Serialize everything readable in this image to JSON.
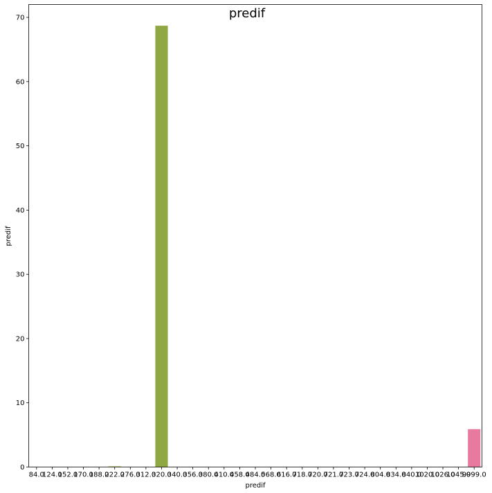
{
  "chart_data": {
    "type": "bar",
    "title": "predif",
    "xlabel": "predif",
    "ylabel": "predif",
    "ylim": [
      0,
      72
    ],
    "yticks": [
      0,
      10,
      20,
      30,
      40,
      50,
      60,
      70
    ],
    "grid": false,
    "categories": [
      "84.0",
      "124.0",
      "152.0",
      "170.0",
      "188.0",
      "222.0",
      "276.0",
      "312.0",
      "320.0",
      "340.0",
      "356.0",
      "380.0",
      "410.0",
      "458.0",
      "484.0",
      "568.0",
      "616.0",
      "718.0",
      "720.0",
      "721.0",
      "723.0",
      "724.0",
      "804.0",
      "834.0",
      "840.0",
      "1020.0",
      "1026.0",
      "1045.0",
      "9999.0"
    ],
    "values": [
      0,
      0,
      0,
      0,
      0,
      0.1,
      0,
      0,
      68.7,
      0,
      0,
      0,
      0,
      0,
      0,
      0,
      0,
      0,
      0,
      0,
      0,
      0,
      0,
      0,
      0,
      0,
      0,
      0,
      5.9
    ],
    "colors": [
      "#f77189",
      "#f7754f",
      "#dc8932",
      "#c39532",
      "#ae9d31",
      "#97a431",
      "#77ab31",
      "#33b07a",
      "#8fa843",
      "#35ad9c",
      "#36ada4",
      "#37abb4",
      "#38a9c5",
      "#3aa5df",
      "#6e9bf4",
      "#a48cf4",
      "#cc7af4",
      "#f45cf2",
      "#f565cc",
      "#f66bad",
      "#d58e32",
      "#a6a332",
      "#5db33b",
      "#35ae96",
      "#39a7d0",
      "#8a94f4",
      "#e66af3",
      "#f66f9b",
      "#e8799f"
    ]
  }
}
